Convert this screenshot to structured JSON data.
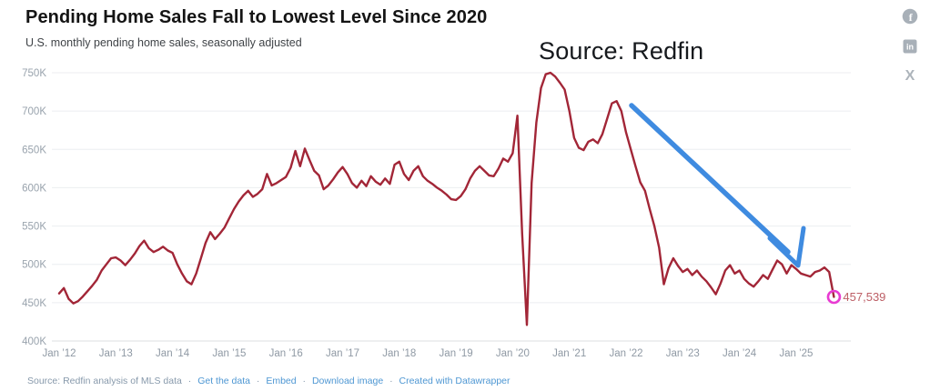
{
  "header": {
    "title": "Pending Home Sales Fall to Lowest Level Since 2020",
    "subtitle": "U.S. monthly pending home sales, seasonally adjusted"
  },
  "annotation": {
    "source_label": "Source: Redfin"
  },
  "share": {
    "facebook_glyph": "f",
    "linkedin_glyph": "in",
    "x_glyph": "X"
  },
  "footer": {
    "source_text": "Source: Redfin analysis of MLS data",
    "separator": "·",
    "links": [
      "Get the data",
      "Embed",
      "Download image",
      "Created with Datawrapper"
    ]
  },
  "chart_data": {
    "type": "line",
    "title": "Pending Home Sales Fall to Lowest Level Since 2020",
    "subtitle": "U.S. monthly pending home sales, seasonally adjusted",
    "grid": "horizontal",
    "legend": "none",
    "ylim_thousands": [
      400,
      750
    ],
    "xlim": [
      "2012-01",
      "2025-09"
    ],
    "y_ticks": [
      {
        "value_k": 750,
        "label": "750K"
      },
      {
        "value_k": 700,
        "label": "700K"
      },
      {
        "value_k": 650,
        "label": "650K"
      },
      {
        "value_k": 600,
        "label": "600K"
      },
      {
        "value_k": 550,
        "label": "550K"
      },
      {
        "value_k": 500,
        "label": "500K"
      },
      {
        "value_k": 450,
        "label": "450K"
      },
      {
        "value_k": 400,
        "label": "400K"
      }
    ],
    "x_ticks": [
      "Jan ’12",
      "Jan ’13",
      "Jan ’14",
      "Jan ’15",
      "Jan ’16",
      "Jan ’17",
      "Jan ’18",
      "Jan ’19",
      "Jan ’20",
      "Jan ’21",
      "Jan ’22",
      "Jan ’23",
      "Jan ’24",
      "Jan ’25"
    ],
    "series": [
      {
        "name": "Pending home sales (seasonally adjusted)",
        "color": "#a22637",
        "frequency": "monthly",
        "start_month": "2012-01",
        "end_month": "2025-09",
        "values_thousands": [
          462,
          469,
          455,
          449,
          452,
          458,
          465,
          472,
          480,
          492,
          500,
          508,
          509,
          505,
          499,
          506,
          514,
          524,
          531,
          521,
          516,
          519,
          523,
          518,
          515,
          500,
          488,
          478,
          474,
          488,
          508,
          528,
          542,
          533,
          540,
          548,
          560,
          572,
          582,
          590,
          596,
          588,
          592,
          598,
          618,
          603,
          606,
          610,
          614,
          626,
          648,
          628,
          651,
          636,
          622,
          616,
          598,
          603,
          611,
          620,
          627,
          618,
          606,
          600,
          609,
          602,
          615,
          608,
          604,
          612,
          605,
          630,
          634,
          618,
          610,
          622,
          628,
          615,
          609,
          605,
          600,
          596,
          591,
          585,
          584,
          589,
          598,
          612,
          622,
          628,
          622,
          616,
          615,
          625,
          638,
          634,
          645,
          694,
          540,
          421,
          606,
          685,
          730,
          748,
          750,
          745,
          737,
          728,
          700,
          665,
          652,
          649,
          660,
          663,
          658,
          670,
          690,
          710,
          713,
          700,
          672,
          650,
          628,
          607,
          596,
          572,
          550,
          522,
          474,
          495,
          508,
          498,
          490,
          494,
          486,
          492,
          484,
          478,
          470,
          461,
          475,
          492,
          499,
          488,
          492,
          481,
          475,
          471,
          478,
          486,
          481,
          493,
          505,
          500,
          488,
          499,
          494,
          488,
          486,
          484,
          490,
          492,
          496,
          490,
          457.539
        ]
      }
    ],
    "end_point": {
      "value": 457539,
      "label": "457,539",
      "marker_color": "#e83bd2",
      "label_color": "#bd5f66"
    },
    "annotation_arrow_color": "#3f8be0",
    "gridline_color": "#eceef0",
    "baseline_color": "#dcdfe2"
  }
}
